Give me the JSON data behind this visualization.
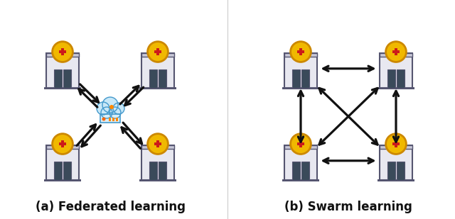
{
  "title_a": "(a) Federated learning",
  "title_b": "(b) Swarm learning",
  "bg_color": "#ffffff",
  "title_fontsize": 12,
  "title_fontweight": "bold",
  "hospital_body_color": "#dcdce8",
  "hospital_body_color2": "#e8e8f0",
  "hospital_outline_color": "#555570",
  "hospital_stripe_color": "#c8c8d8",
  "door_color": "#3a4a5a",
  "cross_bg_color": "#f0b800",
  "cross_bg_outline": "#cc8800",
  "cross_color": "#cc1a1a",
  "arrow_color": "#111111",
  "cloud_body_color": "#c8e8f8",
  "cloud_outline_color": "#4499cc",
  "server_body_color": "#d8eef8",
  "server_outline_color": "#4499cc",
  "server_dot_color": "#ff8800",
  "server_bar_color": "#ff8800"
}
